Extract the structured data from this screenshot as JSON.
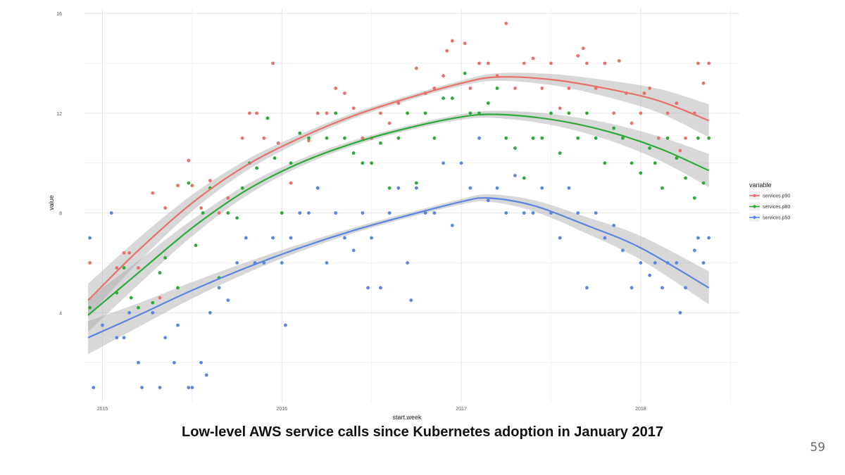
{
  "slide": {
    "caption": "Low-level AWS service calls since Kubernetes adoption in January 2017",
    "page_number": "59"
  },
  "chart_data": {
    "type": "scatter",
    "title": "",
    "xlabel": "start.week",
    "ylabel": "value",
    "xlim": [
      2014.9,
      2018.55
    ],
    "ylim": [
      0.4,
      16.2
    ],
    "x_ticks": [
      2015,
      2016,
      2017,
      2018
    ],
    "x_tick_labels": [
      "2015",
      "2016",
      "2017",
      "2018"
    ],
    "y_ticks": [
      4,
      8,
      12,
      16
    ],
    "y_tick_labels": [
      "4",
      "8",
      "12",
      "16"
    ],
    "grid": true,
    "legend": {
      "title": "variable",
      "position": "right"
    },
    "series": [
      {
        "name": "services.p90",
        "color": "#E8726A",
        "trend": [
          [
            2014.92,
            4.5
          ],
          [
            2015.2,
            6.5
          ],
          [
            2015.5,
            8.4
          ],
          [
            2015.8,
            9.9
          ],
          [
            2016.1,
            11.0
          ],
          [
            2016.4,
            11.9
          ],
          [
            2016.7,
            12.6
          ],
          [
            2017.0,
            13.2
          ],
          [
            2017.2,
            13.45
          ],
          [
            2017.5,
            13.35
          ],
          [
            2017.8,
            13.0
          ],
          [
            2018.1,
            12.5
          ],
          [
            2018.38,
            11.7
          ]
        ],
        "points": [
          [
            2014.93,
            6.0
          ],
          [
            2015.08,
            5.8
          ],
          [
            2015.12,
            6.4
          ],
          [
            2015.15,
            6.4
          ],
          [
            2015.2,
            5.8
          ],
          [
            2015.28,
            8.8
          ],
          [
            2015.32,
            4.6
          ],
          [
            2015.35,
            8.2
          ],
          [
            2015.42,
            9.1
          ],
          [
            2015.48,
            10.1
          ],
          [
            2015.5,
            9.1
          ],
          [
            2015.55,
            8.2
          ],
          [
            2015.6,
            9.3
          ],
          [
            2015.65,
            8.0
          ],
          [
            2015.7,
            8.6
          ],
          [
            2015.78,
            11.0
          ],
          [
            2015.82,
            12.0
          ],
          [
            2015.86,
            12.0
          ],
          [
            2015.9,
            11.0
          ],
          [
            2015.95,
            14.0
          ],
          [
            2015.98,
            10.8
          ],
          [
            2016.05,
            9.2
          ],
          [
            2016.1,
            11.2
          ],
          [
            2016.15,
            10.9
          ],
          [
            2016.2,
            12.0
          ],
          [
            2016.25,
            12.0
          ],
          [
            2016.3,
            13.0
          ],
          [
            2016.35,
            12.8
          ],
          [
            2016.4,
            12.2
          ],
          [
            2016.45,
            11.0
          ],
          [
            2016.5,
            11.0
          ],
          [
            2016.55,
            12.0
          ],
          [
            2016.6,
            11.6
          ],
          [
            2016.65,
            12.4
          ],
          [
            2016.7,
            12.0
          ],
          [
            2016.75,
            13.8
          ],
          [
            2016.8,
            12.8
          ],
          [
            2016.85,
            13.0
          ],
          [
            2016.9,
            13.5
          ],
          [
            2016.92,
            14.5
          ],
          [
            2016.95,
            14.9
          ],
          [
            2017.02,
            14.8
          ],
          [
            2017.05,
            13.0
          ],
          [
            2017.1,
            14.0
          ],
          [
            2017.15,
            14.0
          ],
          [
            2017.2,
            13.5
          ],
          [
            2017.25,
            15.6
          ],
          [
            2017.3,
            13.0
          ],
          [
            2017.35,
            14.0
          ],
          [
            2017.4,
            14.2
          ],
          [
            2017.45,
            13.0
          ],
          [
            2017.5,
            14.0
          ],
          [
            2017.55,
            12.2
          ],
          [
            2017.6,
            13.0
          ],
          [
            2017.65,
            14.3
          ],
          [
            2017.68,
            14.6
          ],
          [
            2017.7,
            14.0
          ],
          [
            2017.75,
            13.0
          ],
          [
            2017.8,
            14.0
          ],
          [
            2017.85,
            12.0
          ],
          [
            2017.88,
            14.1
          ],
          [
            2017.92,
            12.8
          ],
          [
            2017.95,
            11.6
          ],
          [
            2018.0,
            12.0
          ],
          [
            2018.02,
            12.8
          ],
          [
            2018.05,
            13.0
          ],
          [
            2018.1,
            11.0
          ],
          [
            2018.15,
            12.0
          ],
          [
            2018.2,
            12.4
          ],
          [
            2018.22,
            10.5
          ],
          [
            2018.25,
            11.0
          ],
          [
            2018.3,
            12.0
          ],
          [
            2018.32,
            14.0
          ],
          [
            2018.35,
            13.2
          ],
          [
            2018.38,
            14.0
          ]
        ]
      },
      {
        "name": "services.p80",
        "color": "#2EAA3A",
        "trend": [
          [
            2014.92,
            3.9
          ],
          [
            2015.2,
            5.6
          ],
          [
            2015.5,
            7.4
          ],
          [
            2015.8,
            8.9
          ],
          [
            2016.1,
            10.0
          ],
          [
            2016.4,
            10.8
          ],
          [
            2016.7,
            11.4
          ],
          [
            2017.0,
            11.85
          ],
          [
            2017.2,
            11.95
          ],
          [
            2017.5,
            11.75
          ],
          [
            2017.8,
            11.3
          ],
          [
            2018.1,
            10.6
          ],
          [
            2018.38,
            9.7
          ]
        ],
        "points": [
          [
            2014.93,
            4.2
          ],
          [
            2015.08,
            4.8
          ],
          [
            2015.12,
            5.8
          ],
          [
            2015.16,
            4.6
          ],
          [
            2015.2,
            4.2
          ],
          [
            2015.28,
            4.4
          ],
          [
            2015.32,
            5.6
          ],
          [
            2015.35,
            6.2
          ],
          [
            2015.42,
            5.0
          ],
          [
            2015.48,
            9.2
          ],
          [
            2015.52,
            6.7
          ],
          [
            2015.56,
            8.0
          ],
          [
            2015.6,
            9.0
          ],
          [
            2015.65,
            5.4
          ],
          [
            2015.7,
            8.0
          ],
          [
            2015.75,
            7.8
          ],
          [
            2015.78,
            9.0
          ],
          [
            2015.82,
            10.0
          ],
          [
            2015.86,
            9.8
          ],
          [
            2015.92,
            11.8
          ],
          [
            2015.96,
            10.2
          ],
          [
            2016.0,
            8.0
          ],
          [
            2016.05,
            10.0
          ],
          [
            2016.1,
            11.2
          ],
          [
            2016.15,
            11.0
          ],
          [
            2016.2,
            9.0
          ],
          [
            2016.25,
            11.0
          ],
          [
            2016.3,
            12.0
          ],
          [
            2016.35,
            11.0
          ],
          [
            2016.4,
            10.4
          ],
          [
            2016.45,
            10.0
          ],
          [
            2016.5,
            10.0
          ],
          [
            2016.55,
            10.8
          ],
          [
            2016.6,
            9.0
          ],
          [
            2016.65,
            11.0
          ],
          [
            2016.7,
            12.0
          ],
          [
            2016.75,
            9.2
          ],
          [
            2016.8,
            12.0
          ],
          [
            2016.85,
            11.0
          ],
          [
            2016.9,
            12.6
          ],
          [
            2016.95,
            12.6
          ],
          [
            2017.02,
            13.6
          ],
          [
            2017.05,
            12.0
          ],
          [
            2017.1,
            12.0
          ],
          [
            2017.15,
            12.4
          ],
          [
            2017.2,
            13.0
          ],
          [
            2017.25,
            11.0
          ],
          [
            2017.3,
            10.6
          ],
          [
            2017.35,
            9.4
          ],
          [
            2017.4,
            11.0
          ],
          [
            2017.45,
            11.0
          ],
          [
            2017.5,
            12.0
          ],
          [
            2017.55,
            10.4
          ],
          [
            2017.6,
            12.0
          ],
          [
            2017.65,
            11.0
          ],
          [
            2017.7,
            12.0
          ],
          [
            2017.75,
            11.0
          ],
          [
            2017.8,
            10.0
          ],
          [
            2017.85,
            11.4
          ],
          [
            2017.9,
            11.0
          ],
          [
            2017.95,
            10.0
          ],
          [
            2018.0,
            9.6
          ],
          [
            2018.05,
            10.6
          ],
          [
            2018.08,
            10.0
          ],
          [
            2018.12,
            9.0
          ],
          [
            2018.15,
            11.0
          ],
          [
            2018.2,
            10.2
          ],
          [
            2018.25,
            9.4
          ],
          [
            2018.3,
            8.6
          ],
          [
            2018.32,
            11.0
          ],
          [
            2018.35,
            9.2
          ],
          [
            2018.38,
            11.0
          ]
        ]
      },
      {
        "name": "services.p50",
        "color": "#5B86E0",
        "trend": [
          [
            2014.92,
            3.0
          ],
          [
            2015.2,
            3.9
          ],
          [
            2015.5,
            4.9
          ],
          [
            2015.8,
            5.8
          ],
          [
            2016.1,
            6.6
          ],
          [
            2016.4,
            7.3
          ],
          [
            2016.7,
            7.9
          ],
          [
            2017.0,
            8.45
          ],
          [
            2017.15,
            8.6
          ],
          [
            2017.4,
            8.3
          ],
          [
            2017.7,
            7.5
          ],
          [
            2018.0,
            6.6
          ],
          [
            2018.38,
            5.0
          ]
        ],
        "points": [
          [
            2014.93,
            7.0
          ],
          [
            2014.95,
            1.0
          ],
          [
            2015.0,
            3.5
          ],
          [
            2015.05,
            8.0
          ],
          [
            2015.08,
            3.0
          ],
          [
            2015.12,
            3.0
          ],
          [
            2015.15,
            4.0
          ],
          [
            2015.2,
            2.0
          ],
          [
            2015.22,
            1.0
          ],
          [
            2015.28,
            4.0
          ],
          [
            2015.32,
            1.0
          ],
          [
            2015.35,
            3.0
          ],
          [
            2015.4,
            2.0
          ],
          [
            2015.42,
            3.5
          ],
          [
            2015.48,
            1.0
          ],
          [
            2015.5,
            1.0
          ],
          [
            2015.55,
            2.0
          ],
          [
            2015.58,
            1.5
          ],
          [
            2015.6,
            4.0
          ],
          [
            2015.65,
            5.0
          ],
          [
            2015.7,
            4.5
          ],
          [
            2015.75,
            6.0
          ],
          [
            2015.8,
            7.0
          ],
          [
            2015.85,
            6.0
          ],
          [
            2015.9,
            6.0
          ],
          [
            2015.95,
            7.0
          ],
          [
            2016.0,
            6.0
          ],
          [
            2016.02,
            3.5
          ],
          [
            2016.05,
            7.0
          ],
          [
            2016.1,
            8.0
          ],
          [
            2016.15,
            8.0
          ],
          [
            2016.2,
            9.0
          ],
          [
            2016.25,
            6.0
          ],
          [
            2016.3,
            8.0
          ],
          [
            2016.35,
            7.0
          ],
          [
            2016.4,
            6.5
          ],
          [
            2016.45,
            8.0
          ],
          [
            2016.48,
            5.0
          ],
          [
            2016.5,
            7.0
          ],
          [
            2016.55,
            5.0
          ],
          [
            2016.6,
            8.0
          ],
          [
            2016.65,
            9.0
          ],
          [
            2016.7,
            6.0
          ],
          [
            2016.72,
            4.5
          ],
          [
            2016.75,
            9.0
          ],
          [
            2016.8,
            8.0
          ],
          [
            2016.85,
            8.0
          ],
          [
            2016.9,
            10.0
          ],
          [
            2016.95,
            7.5
          ],
          [
            2017.0,
            10.0
          ],
          [
            2017.05,
            9.0
          ],
          [
            2017.1,
            11.0
          ],
          [
            2017.15,
            8.5
          ],
          [
            2017.2,
            9.0
          ],
          [
            2017.25,
            8.0
          ],
          [
            2017.3,
            9.5
          ],
          [
            2017.35,
            8.0
          ],
          [
            2017.4,
            8.0
          ],
          [
            2017.45,
            9.0
          ],
          [
            2017.5,
            8.0
          ],
          [
            2017.55,
            7.0
          ],
          [
            2017.6,
            9.0
          ],
          [
            2017.65,
            8.0
          ],
          [
            2017.7,
            5.0
          ],
          [
            2017.75,
            8.0
          ],
          [
            2017.8,
            7.0
          ],
          [
            2017.85,
            7.5
          ],
          [
            2017.9,
            6.5
          ],
          [
            2017.95,
            5.0
          ],
          [
            2018.0,
            6.0
          ],
          [
            2018.05,
            5.5
          ],
          [
            2018.08,
            6.0
          ],
          [
            2018.12,
            5.0
          ],
          [
            2018.15,
            6.0
          ],
          [
            2018.2,
            6.0
          ],
          [
            2018.22,
            4.0
          ],
          [
            2018.25,
            5.0
          ],
          [
            2018.3,
            6.5
          ],
          [
            2018.32,
            7.0
          ],
          [
            2018.35,
            6.0
          ],
          [
            2018.38,
            7.0
          ]
        ]
      }
    ]
  }
}
